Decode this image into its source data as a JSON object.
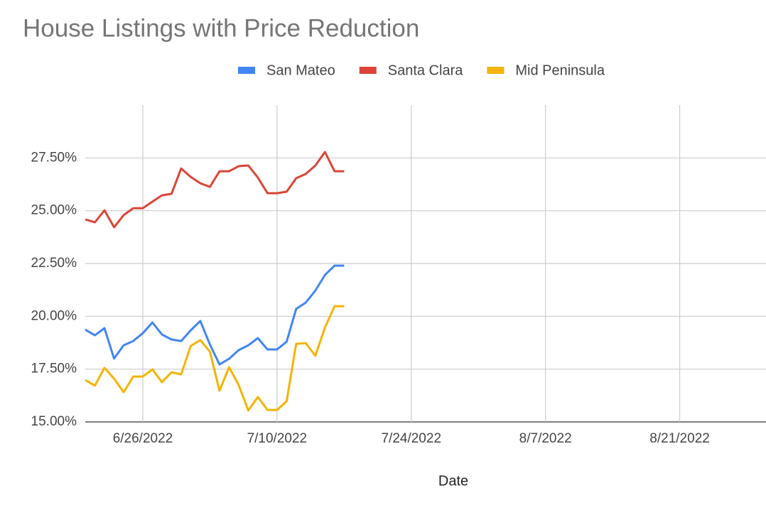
{
  "chart_data": {
    "type": "line",
    "title": "House Listings with Price Reduction",
    "x_label": "Date",
    "x": [
      "6/20/2022",
      "6/21/2022",
      "6/22/2022",
      "6/23/2022",
      "6/24/2022",
      "6/25/2022",
      "6/26/2022",
      "6/27/2022",
      "6/28/2022",
      "6/29/2022",
      "6/30/2022",
      "7/1/2022",
      "7/2/2022",
      "7/3/2022",
      "7/4/2022",
      "7/5/2022",
      "7/6/2022",
      "7/7/2022",
      "7/8/2022",
      "7/9/2022",
      "7/10/2022",
      "7/11/2022",
      "7/12/2022",
      "7/13/2022",
      "7/14/2022",
      "7/15/2022",
      "7/16/2022",
      "7/17/2022"
    ],
    "series": [
      {
        "name": "San Mateo",
        "color": "#4285f4",
        "values": [
          19.37,
          19.1,
          19.44,
          18.0,
          18.63,
          18.83,
          19.2,
          19.71,
          19.14,
          18.9,
          18.83,
          19.34,
          19.78,
          18.67,
          17.72,
          17.99,
          18.4,
          18.63,
          18.97,
          18.43,
          18.43,
          18.8,
          20.35,
          20.65,
          21.22,
          21.96,
          22.4,
          22.4
        ]
      },
      {
        "name": "Santa Clara",
        "color": "#db4437",
        "values": [
          24.59,
          24.45,
          25.02,
          24.22,
          24.79,
          25.12,
          25.12,
          25.43,
          25.73,
          25.8,
          27.0,
          26.6,
          26.3,
          26.13,
          26.87,
          26.87,
          27.11,
          27.14,
          26.57,
          25.83,
          25.83,
          25.9,
          26.54,
          26.74,
          27.14,
          27.78,
          26.87,
          26.87
        ]
      },
      {
        "name": "Mid Peninsula",
        "color": "#f4b400",
        "values": [
          16.98,
          16.72,
          17.56,
          17.05,
          16.41,
          17.15,
          17.15,
          17.49,
          16.88,
          17.35,
          17.25,
          18.6,
          18.87,
          18.33,
          16.48,
          17.59,
          16.75,
          15.54,
          16.18,
          15.57,
          15.57,
          15.98,
          18.7,
          18.73,
          18.13,
          19.47,
          20.48,
          20.48
        ]
      }
    ],
    "xlim": [
      "6/20/2022",
      "8/30/2022"
    ],
    "xticks": [
      "6/26/2022",
      "7/10/2022",
      "7/24/2022",
      "8/7/2022",
      "8/21/2022"
    ],
    "ylim": [
      15,
      30
    ],
    "yticks": [
      {
        "value": 15,
        "label": "15.00%"
      },
      {
        "value": 17.5,
        "label": "17.50%"
      },
      {
        "value": 20,
        "label": "20.00%"
      },
      {
        "value": 22.5,
        "label": "22.50%"
      },
      {
        "value": 25,
        "label": "25.00%"
      },
      {
        "value": 27.5,
        "label": "27.50%"
      }
    ],
    "grid": true,
    "legend": "top"
  }
}
